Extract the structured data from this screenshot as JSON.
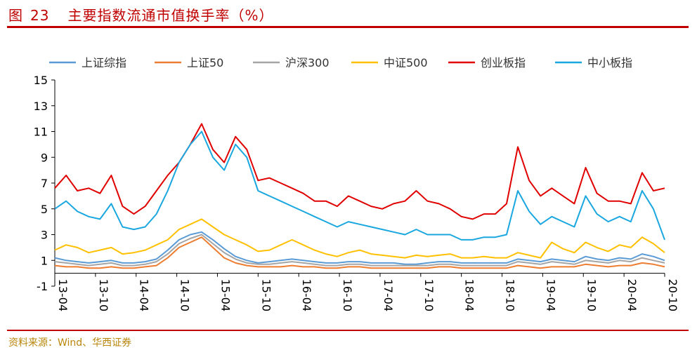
{
  "figure": {
    "label": "图",
    "number": "23",
    "title": "主要指数流通市值换手率（%）"
  },
  "source": "资料来源：Wind、华西证券",
  "chart_data": {
    "type": "line",
    "ylim": [
      -1,
      15
    ],
    "yticks": [
      -1,
      1,
      3,
      5,
      7,
      9,
      11,
      13,
      15
    ],
    "xticks": [
      "13-04",
      "13-10",
      "14-04",
      "14-10",
      "15-04",
      "15-10",
      "16-04",
      "16-10",
      "17-04",
      "17-10",
      "18-04",
      "18-10",
      "19-04",
      "19-10",
      "20-04",
      "20-10"
    ],
    "legend_position": "top",
    "grid": false,
    "series": [
      {
        "name": "上证综指",
        "color": "#5b9bd5",
        "values": [
          1.2,
          1.0,
          0.9,
          0.8,
          0.9,
          1.0,
          0.8,
          0.8,
          0.9,
          1.1,
          1.8,
          2.6,
          3.0,
          3.2,
          2.6,
          1.9,
          1.3,
          1.0,
          0.8,
          0.9,
          1.0,
          1.1,
          1.0,
          0.9,
          0.8,
          0.8,
          0.9,
          0.9,
          0.8,
          0.8,
          0.8,
          0.7,
          0.7,
          0.8,
          0.9,
          0.9,
          0.8,
          0.8,
          0.8,
          0.8,
          0.8,
          1.1,
          1.0,
          0.9,
          1.1,
          1.0,
          0.9,
          1.3,
          1.1,
          1.0,
          1.2,
          1.1,
          1.5,
          1.3,
          1.0
        ]
      },
      {
        "name": "上证50",
        "color": "#ed7d31",
        "values": [
          0.6,
          0.5,
          0.5,
          0.4,
          0.4,
          0.5,
          0.4,
          0.4,
          0.5,
          0.6,
          1.2,
          2.0,
          2.4,
          2.8,
          2.0,
          1.2,
          0.8,
          0.6,
          0.5,
          0.5,
          0.5,
          0.6,
          0.5,
          0.5,
          0.4,
          0.4,
          0.5,
          0.5,
          0.4,
          0.4,
          0.4,
          0.4,
          0.4,
          0.4,
          0.5,
          0.5,
          0.4,
          0.4,
          0.4,
          0.4,
          0.4,
          0.6,
          0.5,
          0.4,
          0.5,
          0.5,
          0.5,
          0.7,
          0.6,
          0.5,
          0.6,
          0.6,
          0.8,
          0.7,
          0.5
        ]
      },
      {
        "name": "沪深300",
        "color": "#a5a5a5",
        "values": [
          0.9,
          0.8,
          0.7,
          0.6,
          0.7,
          0.8,
          0.6,
          0.6,
          0.7,
          0.9,
          1.5,
          2.3,
          2.7,
          3.0,
          2.3,
          1.6,
          1.1,
          0.8,
          0.7,
          0.7,
          0.8,
          0.9,
          0.8,
          0.7,
          0.6,
          0.6,
          0.7,
          0.7,
          0.6,
          0.6,
          0.6,
          0.6,
          0.6,
          0.6,
          0.7,
          0.7,
          0.6,
          0.6,
          0.6,
          0.6,
          0.6,
          0.9,
          0.8,
          0.7,
          0.9,
          0.8,
          0.7,
          1.0,
          0.9,
          0.8,
          1.0,
          0.9,
          1.2,
          1.0,
          0.8
        ]
      },
      {
        "name": "中证500",
        "color": "#ffc000",
        "values": [
          1.8,
          2.2,
          2.0,
          1.6,
          1.8,
          2.0,
          1.5,
          1.6,
          1.8,
          2.2,
          2.6,
          3.4,
          3.8,
          4.2,
          3.6,
          3.0,
          2.6,
          2.2,
          1.7,
          1.8,
          2.2,
          2.6,
          2.2,
          1.8,
          1.5,
          1.3,
          1.6,
          1.8,
          1.5,
          1.4,
          1.3,
          1.2,
          1.4,
          1.3,
          1.4,
          1.5,
          1.2,
          1.2,
          1.3,
          1.2,
          1.2,
          1.6,
          1.4,
          1.2,
          2.4,
          1.9,
          1.6,
          2.4,
          2.0,
          1.7,
          2.2,
          2.0,
          2.8,
          2.3,
          1.6
        ]
      },
      {
        "name": "创业板指",
        "color": "#e00000",
        "values": [
          6.6,
          7.6,
          6.4,
          6.6,
          6.2,
          7.6,
          5.2,
          4.6,
          5.2,
          6.4,
          7.6,
          8.6,
          10.0,
          11.6,
          9.6,
          8.6,
          10.6,
          9.6,
          7.2,
          7.4,
          7.0,
          6.6,
          6.2,
          5.6,
          5.6,
          5.2,
          6.0,
          5.6,
          5.2,
          5.0,
          5.4,
          5.6,
          6.4,
          5.6,
          5.4,
          5.0,
          4.4,
          4.2,
          4.6,
          4.6,
          5.4,
          9.8,
          7.2,
          6.0,
          6.6,
          6.0,
          5.4,
          8.2,
          6.2,
          5.6,
          5.6,
          5.4,
          7.8,
          6.4,
          6.6
        ]
      },
      {
        "name": "中小板指",
        "color": "#1aa7e0",
        "values": [
          5.0,
          5.6,
          4.8,
          4.4,
          4.2,
          5.4,
          3.6,
          3.4,
          3.6,
          4.6,
          6.4,
          8.6,
          10.0,
          11.0,
          9.0,
          8.0,
          10.0,
          9.0,
          6.4,
          6.0,
          5.6,
          5.2,
          4.8,
          4.4,
          4.0,
          3.6,
          4.0,
          3.8,
          3.6,
          3.4,
          3.2,
          3.0,
          3.4,
          3.0,
          3.0,
          3.0,
          2.6,
          2.6,
          2.8,
          2.8,
          3.0,
          6.4,
          4.8,
          3.8,
          4.4,
          4.0,
          3.6,
          6.0,
          4.6,
          4.0,
          4.4,
          4.0,
          6.4,
          5.0,
          2.6
        ]
      }
    ]
  }
}
